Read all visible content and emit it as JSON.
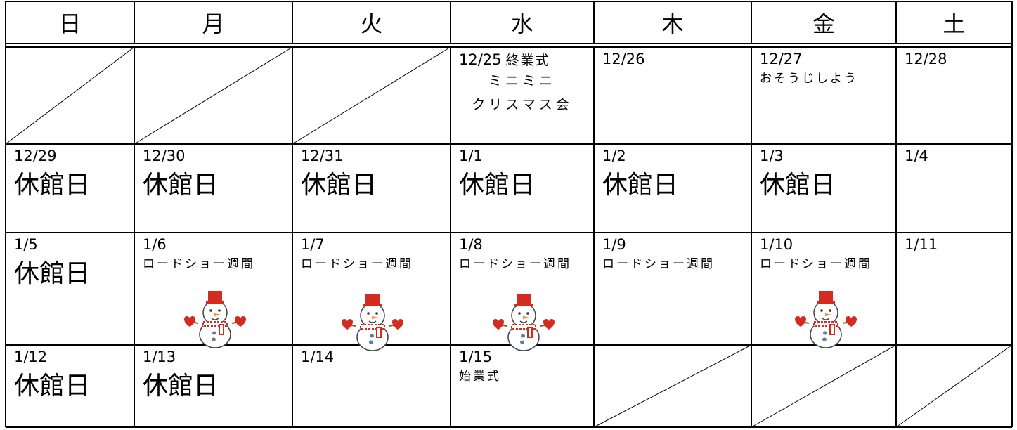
{
  "header": {
    "days": [
      "日",
      "月",
      "火",
      "水",
      "木",
      "金",
      "土"
    ]
  },
  "weeks": [
    [
      null,
      null,
      null,
      {
        "date": "12/25",
        "inline": "終業式",
        "notes": [
          "ミニミニ",
          "クリスマス会"
        ]
      },
      {
        "date": "12/26"
      },
      {
        "date": "12/27",
        "notes": [
          "おそうじしよう"
        ]
      },
      {
        "date": "12/28"
      }
    ],
    [
      {
        "date": "12/29",
        "title": "休館日"
      },
      {
        "date": "12/30",
        "title": "休館日"
      },
      {
        "date": "12/31",
        "title": "休館日"
      },
      {
        "date": "1/1",
        "title": "休館日"
      },
      {
        "date": "1/2",
        "title": "休館日"
      },
      {
        "date": "1/3",
        "title": "休館日"
      },
      {
        "date": "1/4"
      }
    ],
    [
      {
        "date": "1/5",
        "title": "休館日"
      },
      {
        "date": "1/6",
        "notes": [
          "ロードショー週間"
        ]
      },
      {
        "date": "1/7",
        "notes": [
          "ロードショー週間"
        ]
      },
      {
        "date": "1/8",
        "notes": [
          "ロードショー週間"
        ]
      },
      {
        "date": "1/9",
        "notes": [
          "ロードショー週間"
        ]
      },
      {
        "date": "1/10",
        "notes": [
          "ロードショー週間"
        ]
      },
      {
        "date": "1/11"
      }
    ],
    [
      {
        "date": "1/12",
        "title": "休館日"
      },
      {
        "date": "1/13",
        "title": "休館日"
      },
      {
        "date": "1/14"
      },
      {
        "date": "1/15",
        "notes": [
          "始業式"
        ]
      },
      null,
      null,
      null
    ]
  ]
}
